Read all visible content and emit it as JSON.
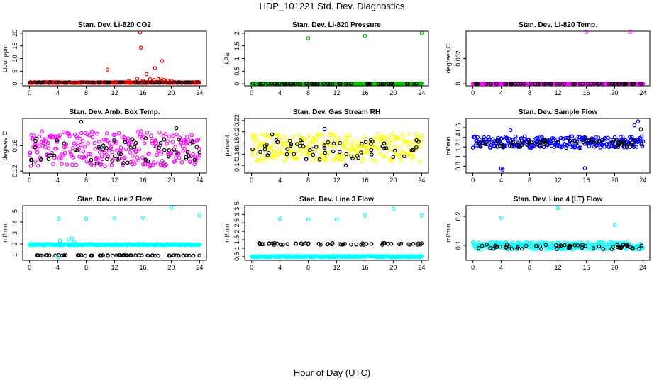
{
  "page": {
    "title": "HDP_101221  Std. Dev. Diagnostics",
    "xlabel": "Hour of Day (UTC)"
  },
  "chart_data": [
    {
      "type": "scatter",
      "title": "Stan. Dev. Li-820 CO2",
      "ylabel": "Licor ppm",
      "xlim": [
        0,
        24
      ],
      "xticks": [
        0,
        4,
        8,
        12,
        16,
        20,
        24
      ],
      "ylim": [
        0,
        20
      ],
      "yticks": [
        0,
        5,
        10,
        15,
        20
      ],
      "color": "#e00000",
      "baseline": {
        "value": 0.5,
        "spread": 0.15
      },
      "black_baseline": {
        "value": 0.5,
        "spread": 0.1
      },
      "outliers": [
        [
          11,
          5.6
        ],
        [
          15.6,
          20.3
        ],
        [
          15.7,
          14.3
        ],
        [
          16.5,
          3.8
        ],
        [
          17.7,
          6.2
        ],
        [
          18.7,
          9.0
        ],
        [
          15.2,
          2.0
        ],
        [
          17.0,
          1.8
        ],
        [
          17.5,
          1.5
        ],
        [
          18.2,
          1.9
        ],
        [
          19.0,
          1.5
        ],
        [
          19.5,
          1.3
        ],
        [
          16.0,
          1.2
        ],
        [
          14.0,
          1.1
        ],
        [
          20.0,
          1.2
        ],
        [
          18.5,
          2.1
        ]
      ],
      "black_points": []
    },
    {
      "type": "scatter",
      "title": "Stan. Dev. Li-820 Pressure",
      "ylabel": "kPa",
      "xlim": [
        0,
        24
      ],
      "xticks": [
        0,
        4,
        8,
        12,
        16,
        20,
        24
      ],
      "ylim": [
        0,
        2.0
      ],
      "yticks": [
        0.0,
        0.5,
        1.0,
        1.5,
        2.0
      ],
      "color": "#00c000",
      "baseline": {
        "value": 0.01,
        "spread": 0.005
      },
      "black_baseline": {
        "value": 0.01,
        "spread": 0.005
      },
      "outliers": [
        [
          8,
          1.8
        ],
        [
          16,
          1.9
        ],
        [
          24,
          2.0
        ],
        [
          0,
          0.0
        ]
      ],
      "black_points": []
    },
    {
      "type": "scatter",
      "title": "Stan. Dev. Li-820 Temp.",
      "ylabel": "degrees C",
      "xlim": [
        0,
        24
      ],
      "xticks": [
        0,
        4,
        8,
        12,
        16,
        20,
        24
      ],
      "ylim": [
        0,
        0.004
      ],
      "yticks": [
        0.0,
        0.002
      ],
      "color": "#ff00ff",
      "baseline": {
        "value": 0.0,
        "spread": 0.0
      },
      "black_baseline": {
        "value": 0.0,
        "spread": 0.0
      },
      "outliers": [
        [
          16,
          0.0041
        ],
        [
          22.2,
          0.0041
        ]
      ],
      "black_points": []
    },
    {
      "type": "scatter",
      "title": "Stan. Dev. Amb. Box Temp.",
      "ylabel": "degrees C",
      "xlim": [
        0,
        24
      ],
      "xticks": [
        0,
        4,
        8,
        12,
        16,
        20,
        24
      ],
      "ylim": [
        0.12,
        0.2
      ],
      "yticks": [
        0.12,
        0.16
      ],
      "color": "#ff00ff",
      "baseline": {
        "value": 0.155,
        "spread": 0.028
      },
      "black_baseline": {
        "value": 0.152,
        "spread": 0.02
      },
      "outliers": [],
      "black_points": [
        [
          7.3,
          0.198
        ],
        [
          0.6,
          0.132
        ],
        [
          20.7,
          0.188
        ]
      ]
    },
    {
      "type": "scatter",
      "title": "Stan. Dev. Gas Stream RH",
      "ylabel": "percent",
      "xlim": [
        0,
        24
      ],
      "xticks": [
        0,
        4,
        8,
        12,
        16,
        20,
        24
      ],
      "ylim": [
        0.13,
        0.22
      ],
      "yticks": [
        0.14,
        0.16,
        0.18,
        0.2,
        0.22
      ],
      "color": "#ffff00",
      "baseline": {
        "value": 0.172,
        "spread": 0.025
      },
      "black_baseline": {
        "value": 0.168,
        "spread": 0.018
      },
      "outliers": [],
      "black_points": [
        [
          10.3,
          0.205
        ],
        [
          2.9,
          0.195
        ],
        [
          13.3,
          0.14
        ]
      ]
    },
    {
      "type": "scatter",
      "title": "Stan. Dev. Sample Flow",
      "ylabel": "ml/min",
      "xlim": [
        0,
        24
      ],
      "xticks": [
        0,
        4,
        8,
        12,
        16,
        20,
        24
      ],
      "ylim": [
        0.7,
        1.75
      ],
      "yticks": [
        0.8,
        1.0,
        1.2,
        1.4,
        1.6
      ],
      "color": "#0000ff",
      "baseline": {
        "value": 1.3,
        "spread": 0.12
      },
      "black_baseline": {
        "value": 1.28,
        "spread": 0.08
      },
      "outliers": [
        [
          4.0,
          0.75
        ],
        [
          4.2,
          0.73
        ],
        [
          15.8,
          0.76
        ],
        [
          23.3,
          1.73
        ],
        [
          22.8,
          1.65
        ],
        [
          5.3,
          1.55
        ]
      ],
      "black_points": [
        [
          23.7,
          1.57
        ]
      ]
    },
    {
      "type": "scatter",
      "title": "Stan. Dev. Line 2 Flow",
      "ylabel": "ml/min",
      "xlim": [
        0,
        24
      ],
      "xticks": [
        0,
        4,
        8,
        12,
        16,
        20,
        24
      ],
      "ylim": [
        0.7,
        5.3
      ],
      "yticks": [
        1,
        2,
        3,
        4,
        5
      ],
      "color": "#00ffff",
      "baseline": {
        "value": 1.95,
        "spread": 0.06
      },
      "black_baseline": {
        "value": 0.95,
        "spread": 0.03
      },
      "outliers": [
        [
          4.1,
          4.3
        ],
        [
          8.0,
          4.3
        ],
        [
          12.0,
          4.35
        ],
        [
          16.0,
          4.4
        ],
        [
          20.0,
          5.3
        ],
        [
          24.0,
          4.6
        ],
        [
          6.0,
          2.5
        ],
        [
          5.5,
          2.4
        ],
        [
          4.3,
          2.3
        ],
        [
          6.3,
          2.2
        ],
        [
          4.0,
          0.8
        ]
      ],
      "black_points": []
    },
    {
      "type": "scatter",
      "title": "Stan. Dev. Line 3 Flow",
      "ylabel": "ml/min",
      "xlim": [
        0,
        24
      ],
      "xticks": [
        0,
        4,
        8,
        12,
        16,
        20,
        24
      ],
      "ylim": [
        0.4,
        3.4
      ],
      "yticks": [
        0.5,
        1.0,
        1.5,
        2.0,
        2.5,
        3.0,
        3.5
      ],
      "color": "#00ffff",
      "baseline": {
        "value": 0.5,
        "spread": 0.04
      },
      "black_baseline": {
        "value": 1.25,
        "spread": 0.05
      },
      "outliers": [
        [
          4.0,
          2.75
        ],
        [
          8.0,
          2.7
        ],
        [
          12.0,
          2.7
        ],
        [
          16.0,
          2.95
        ],
        [
          20.0,
          3.35
        ],
        [
          24.0,
          2.95
        ]
      ],
      "black_points": []
    },
    {
      "type": "scatter",
      "title": "Stan. Dev. Line 4 (LT) Flow",
      "ylabel": "ml/min",
      "xlim": [
        0,
        24
      ],
      "xticks": [
        0,
        4,
        8,
        12,
        16,
        20,
        24
      ],
      "ylim": [
        0.055,
        0.23
      ],
      "yticks": [
        0.1,
        0.2
      ],
      "color": "#00ffff",
      "baseline": {
        "value": 0.098,
        "spread": 0.013
      },
      "black_baseline": {
        "value": 0.095,
        "spread": 0.008
      },
      "outliers": [
        [
          4.0,
          0.195
        ],
        [
          12.0,
          0.228
        ],
        [
          20.0,
          0.17
        ]
      ],
      "black_points": []
    }
  ]
}
